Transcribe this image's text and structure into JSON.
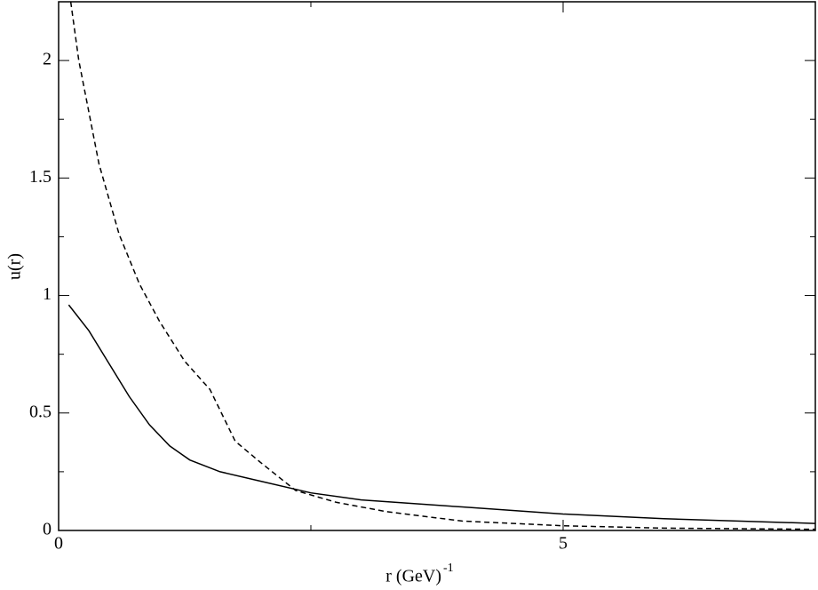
{
  "chart_data": {
    "type": "line",
    "xlabel": "r (GeV)",
    "xlabel_sup": "-1",
    "ylabel": "u(r)",
    "xlim": [
      0,
      7.5
    ],
    "ylim": [
      0,
      2.25
    ],
    "xticks": [
      0,
      5
    ],
    "yticks": [
      0,
      0.5,
      1,
      1.5,
      2
    ],
    "xminorticks": [
      2.5
    ],
    "yminorticks": [
      0.25,
      0.75,
      1.25,
      1.75
    ],
    "series": [
      {
        "color": "#000000",
        "dash": false,
        "x": [
          0.1,
          0.3,
          0.5,
          0.7,
          0.9,
          1.1,
          1.3,
          1.6,
          2.0,
          2.5,
          3,
          4,
          5,
          6,
          7.5
        ],
        "values": [
          0.96,
          0.85,
          0.71,
          0.57,
          0.45,
          0.36,
          0.3,
          0.25,
          0.21,
          0.16,
          0.13,
          0.1,
          0.07,
          0.05,
          0.03
        ]
      },
      {
        "color": "#000000",
        "dash": true,
        "x": [
          0.12,
          0.2,
          0.3,
          0.4,
          0.6,
          0.8,
          1.0,
          1.25,
          1.5,
          1.75,
          2.0,
          2.35,
          2.75,
          3.25,
          4,
          5,
          6,
          7.5
        ],
        "values": [
          2.25,
          2.0,
          1.78,
          1.56,
          1.26,
          1.05,
          0.89,
          0.72,
          0.6,
          0.38,
          0.29,
          0.17,
          0.12,
          0.08,
          0.04,
          0.02,
          0.01,
          0.005
        ]
      }
    ]
  }
}
